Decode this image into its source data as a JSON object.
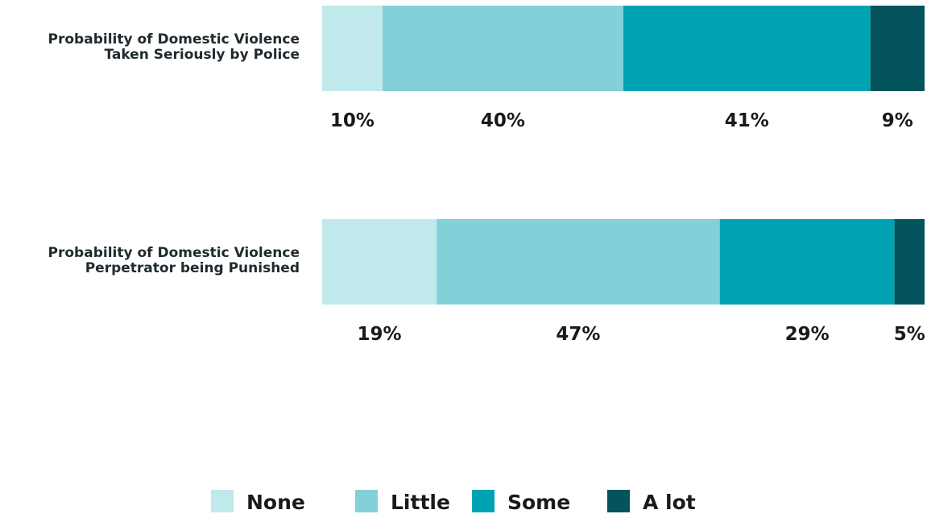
{
  "chart_data": {
    "type": "bar",
    "orientation": "horizontal",
    "stacked": true,
    "percent": true,
    "categories": [
      [
        "Probability of Domestic Violence",
        "Taken Seriously by Police"
      ],
      [
        "Probability of Domestic Violence",
        "Perpetrator being Punished"
      ]
    ],
    "series": [
      {
        "name": "None",
        "color": "#c1e8ea",
        "values": [
          10,
          19
        ]
      },
      {
        "name": "Little",
        "color": "#83d1d8",
        "values": [
          40,
          47
        ]
      },
      {
        "name": "Some",
        "color": "#00a3b3",
        "values": [
          41,
          29
        ]
      },
      {
        "name": "A lot",
        "color": "#03545c",
        "values": [
          9,
          5
        ]
      }
    ],
    "labels": [
      [
        "10%",
        "40%",
        "41%",
        "9%"
      ],
      [
        "19%",
        "47%",
        "29%",
        "5%"
      ]
    ],
    "xlim": [
      0,
      100
    ],
    "grid": false,
    "legend_position": "bottom"
  }
}
